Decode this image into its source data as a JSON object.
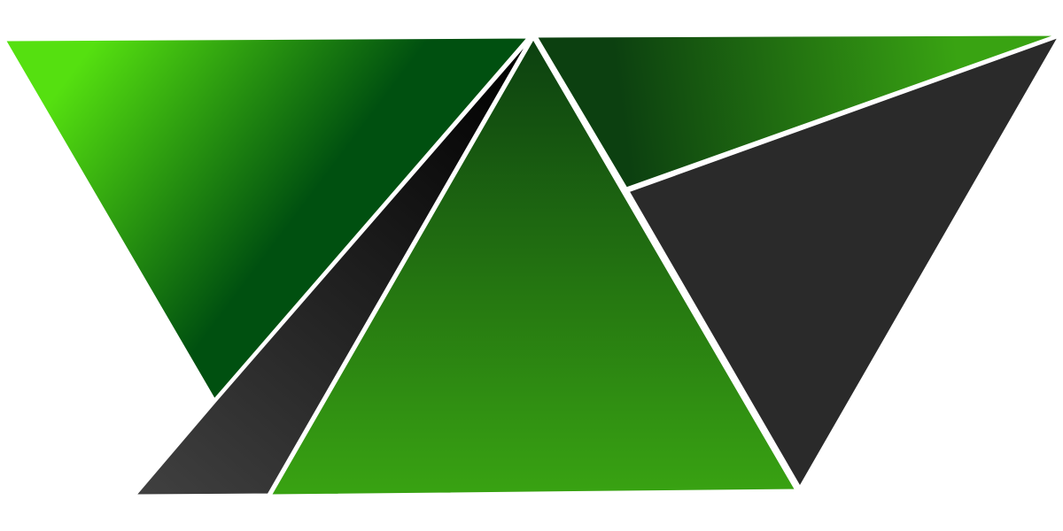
{
  "colors": {
    "background": "#ffffff",
    "bright_green": "#55e010",
    "deep_green": "#005010",
    "dark_green": "#0c4010",
    "mid_green": "#39a312",
    "charcoal": "#2a2a2a",
    "dark_gray": "#404040",
    "black": "#000000",
    "divider": "#ffffff"
  },
  "shapes": [
    {
      "name": "left-triangle",
      "fill": "grad-left"
    },
    {
      "name": "dark-sliver",
      "fill": "grad-sliver"
    },
    {
      "name": "center-triangle",
      "fill": "grad-center"
    },
    {
      "name": "top-right-triangle",
      "fill": "grad-topright"
    },
    {
      "name": "right-triangle",
      "fill": "solid-charcoal"
    }
  ]
}
